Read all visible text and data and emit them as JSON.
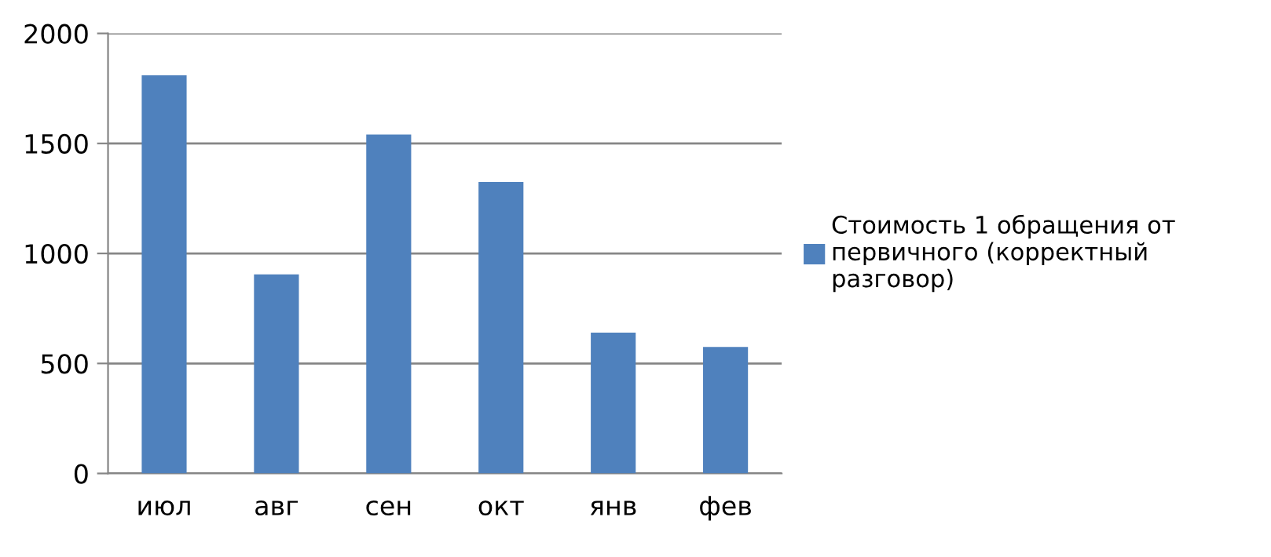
{
  "chart_data": {
    "type": "bar",
    "categories": [
      "июл",
      "авг",
      "сен",
      "окт",
      "янв",
      "фев"
    ],
    "series": [
      {
        "name": "Стоимость 1 обращения от\nпервичного (корректный\nразговор)",
        "color": "#4f81bd",
        "values": [
          1810,
          905,
          1540,
          1325,
          640,
          575
        ]
      }
    ],
    "ylim": [
      0,
      2000
    ],
    "yticks": [
      0,
      500,
      1000,
      1500,
      2000
    ],
    "grid": "y",
    "legend": "right"
  }
}
